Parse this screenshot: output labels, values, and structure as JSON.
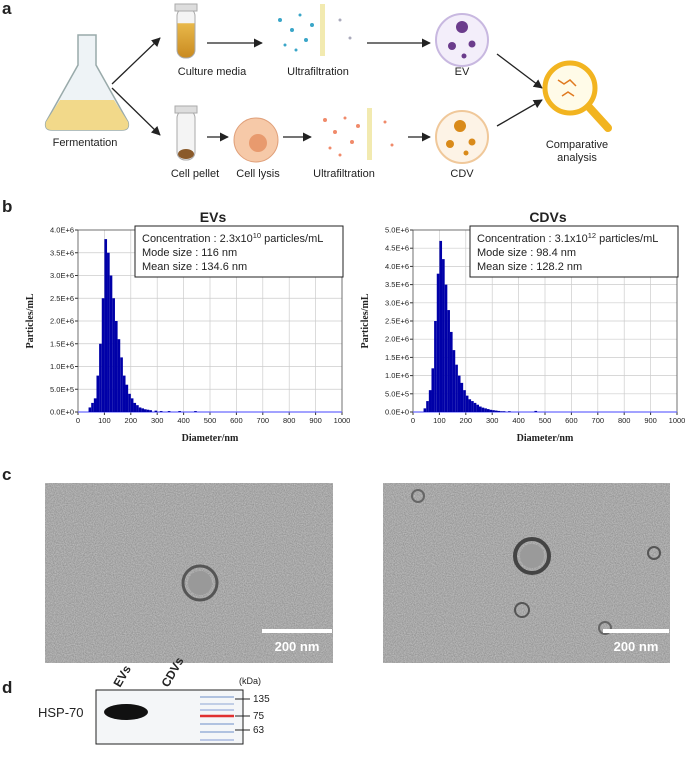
{
  "panel_labels": [
    "a",
    "b",
    "c",
    "d"
  ],
  "schematic": {
    "fermentation": "Fermentation",
    "culture_media": "Culture media",
    "cell_pellet": "Cell pellet",
    "cell_lysis": "Cell lysis",
    "ultrafiltration_top": "Ultrafiltration",
    "ultrafiltration_bottom": "Ultrafiltration",
    "ev": "EV",
    "cdv": "CDV",
    "comparative": [
      "Comparative",
      "analysis"
    ]
  },
  "chart_data": [
    {
      "type": "histogram",
      "title": "EVs",
      "xlabel": "Diameter/nm",
      "ylabel": "Particles/mL",
      "color": "#0000a8",
      "bins": [
        0,
        10,
        20,
        30,
        40,
        50,
        60,
        70,
        80,
        90,
        100,
        110,
        120,
        130,
        140,
        150,
        160,
        170,
        180,
        190,
        200,
        210,
        220,
        230,
        240,
        250,
        260,
        270,
        280,
        290,
        300,
        310,
        320,
        330,
        340,
        350,
        360,
        370,
        380,
        390,
        400,
        410,
        420,
        430,
        440,
        450,
        460,
        470,
        480,
        490,
        500
      ],
      "values": [
        0,
        0,
        0,
        0,
        100000,
        200000,
        300000,
        800000,
        1500000,
        2500000,
        3800000,
        3500000,
        3000000,
        2500000,
        2000000,
        1600000,
        1200000,
        800000,
        600000,
        400000,
        300000,
        200000,
        150000,
        100000,
        80000,
        60000,
        50000,
        40000,
        0,
        30000,
        0,
        20000,
        0,
        0,
        20000,
        0,
        0,
        0,
        20000,
        0,
        0,
        0,
        0,
        0,
        20000,
        0,
        0,
        0,
        0,
        0
      ],
      "xlim": [
        0,
        1000
      ],
      "xticks": [
        0,
        100,
        200,
        300,
        400,
        500,
        600,
        700,
        800,
        900,
        1000
      ],
      "ylim": [
        0,
        4000000
      ],
      "yticks": [
        {
          "value": 0,
          "label": "0.0E+0"
        },
        {
          "value": 500000,
          "label": "5.0E+5"
        },
        {
          "value": 1000000,
          "label": "1.0E+6"
        },
        {
          "value": 1500000,
          "label": "1.5E+6"
        },
        {
          "value": 2000000,
          "label": "2.0E+6"
        },
        {
          "value": 2500000,
          "label": "2.5E+6"
        },
        {
          "value": 3000000,
          "label": "3.0E+6"
        },
        {
          "value": 3500000,
          "label": "3.5E+6"
        },
        {
          "value": 4000000,
          "label": "4.0E+6"
        }
      ],
      "grid": true,
      "annotations": [
        {
          "text": "Concentration : 2.3x10",
          "sup": "10",
          "after": " particles/mL"
        },
        {
          "text": "Mode size :  116 nm"
        },
        {
          "text": "Mean size : 134.6 nm"
        }
      ]
    },
    {
      "type": "histogram",
      "title": "CDVs",
      "xlabel": "Diameter/nm",
      "ylabel": "Particles/mL",
      "color": "#0000a8",
      "bins": [
        0,
        10,
        20,
        30,
        40,
        50,
        60,
        70,
        80,
        90,
        100,
        110,
        120,
        130,
        140,
        150,
        160,
        170,
        180,
        190,
        200,
        210,
        220,
        230,
        240,
        250,
        260,
        270,
        280,
        290,
        300,
        310,
        320,
        330,
        340,
        350,
        360,
        370,
        380,
        390,
        400,
        410,
        420,
        430,
        440,
        450,
        460,
        470,
        480,
        490,
        500
      ],
      "values": [
        0,
        0,
        0,
        0,
        100000,
        300000,
        600000,
        1200000,
        2500000,
        3800000,
        4700000,
        4200000,
        3500000,
        2800000,
        2200000,
        1700000,
        1300000,
        1000000,
        800000,
        600000,
        450000,
        350000,
        300000,
        250000,
        200000,
        150000,
        120000,
        100000,
        80000,
        60000,
        50000,
        40000,
        30000,
        20000,
        20000,
        0,
        20000,
        0,
        0,
        0,
        0,
        0,
        0,
        0,
        0,
        0,
        30000,
        0,
        0,
        0
      ],
      "xlim": [
        0,
        1000
      ],
      "xticks": [
        0,
        100,
        200,
        300,
        400,
        500,
        600,
        700,
        800,
        900,
        1000
      ],
      "ylim": [
        0,
        5000000
      ],
      "yticks": [
        {
          "value": 0,
          "label": "0.0E+0"
        },
        {
          "value": 500000,
          "label": "5.0E+5"
        },
        {
          "value": 1000000,
          "label": "1.0E+6"
        },
        {
          "value": 1500000,
          "label": "1.5E+6"
        },
        {
          "value": 2000000,
          "label": "2.0E+6"
        },
        {
          "value": 2500000,
          "label": "2.5E+6"
        },
        {
          "value": 3000000,
          "label": "3.0E+6"
        },
        {
          "value": 3500000,
          "label": "3.5E+6"
        },
        {
          "value": 4000000,
          "label": "4.0E+6"
        },
        {
          "value": 4500000,
          "label": "4.5E+6"
        },
        {
          "value": 5000000,
          "label": "5.0E+6"
        }
      ],
      "grid": true,
      "annotations": [
        {
          "text": "Concentration : 3.1x10",
          "sup": "12",
          "after": " particles/mL"
        },
        {
          "text": "Mode size :  98.4 nm"
        },
        {
          "text": "Mean size : 128.2 nm"
        }
      ]
    }
  ],
  "tem": {
    "scale_bars": [
      "200 nm",
      "200 nm"
    ]
  },
  "western_blot": {
    "lanes": [
      "EVs",
      "CDVs"
    ],
    "unit": "(kDa)",
    "markers": [
      135,
      75,
      63
    ],
    "protein": "HSP-70"
  }
}
